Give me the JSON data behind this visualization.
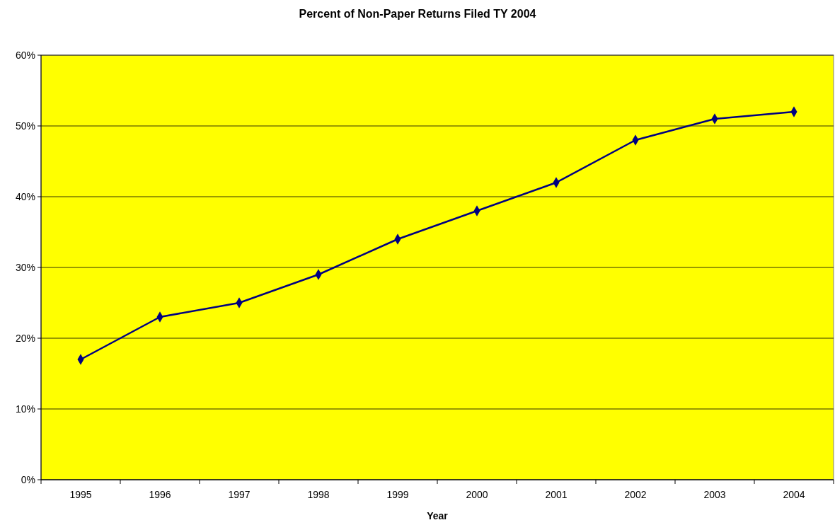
{
  "chart_data": {
    "type": "line",
    "title": "Percent of Non-Paper Returns Filed TY 2004",
    "xlabel": "Year",
    "categories": [
      "1995",
      "1996",
      "1997",
      "1998",
      "1999",
      "2000",
      "2001",
      "2002",
      "2003",
      "2004"
    ],
    "series": [
      {
        "color": "#000080",
        "values": [
          17,
          23,
          25,
          29,
          34,
          38,
          42,
          48,
          51,
          52
        ]
      }
    ],
    "ylim": [
      0,
      60
    ],
    "yticks": [
      {
        "value": 0,
        "label": "0%"
      },
      {
        "value": 10,
        "label": "10%"
      },
      {
        "value": 20,
        "label": "20%"
      },
      {
        "value": 30,
        "label": "30%"
      },
      {
        "value": 40,
        "label": "40%"
      },
      {
        "value": 50,
        "label": "50%"
      },
      {
        "value": 60,
        "label": "60%"
      }
    ],
    "grid": "y",
    "marker": "diamond",
    "line_style": "solid"
  }
}
